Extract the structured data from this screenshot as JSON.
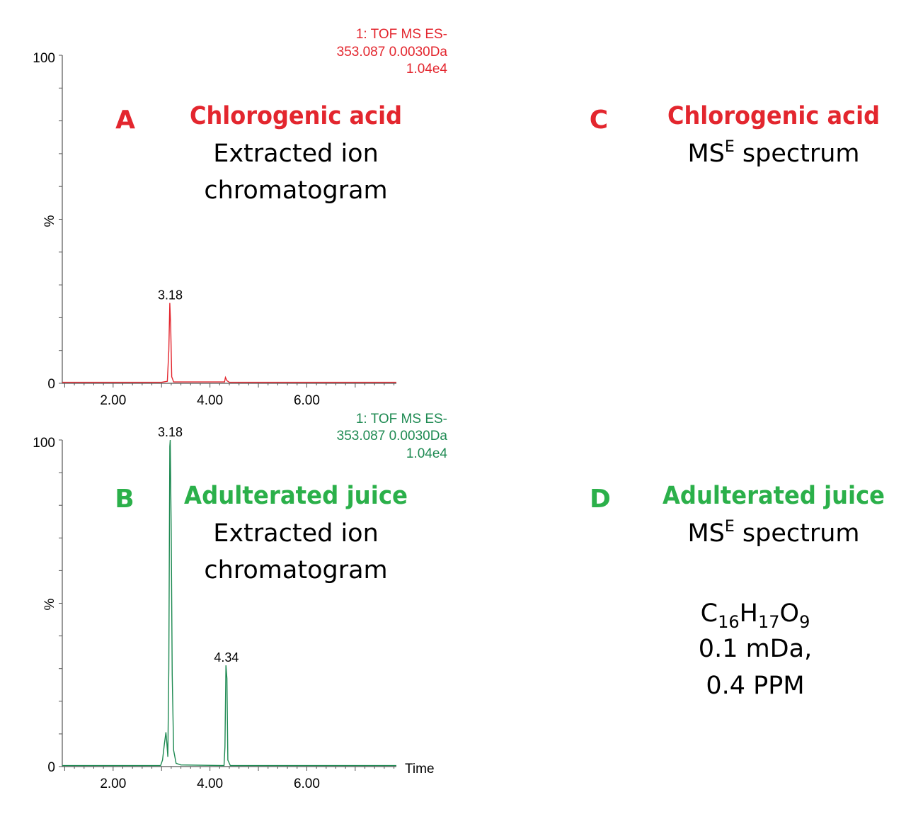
{
  "colors": {
    "red": "#e3262e",
    "green": "#1e8a52",
    "greenLabel": "#2bb04a",
    "axis": "#555555"
  },
  "panels": {
    "A": {
      "letter": "A",
      "title": "Chlorogenic acid",
      "line1": "Extracted ion",
      "line2": "chromatogram"
    },
    "B": {
      "letter": "B",
      "title": "Adulterated juice",
      "line1": "Extracted ion",
      "line2": "chromatogram"
    },
    "C": {
      "letter": "C",
      "title": "Chlorogenic acid",
      "spec_prefix": "MS",
      "spec_sup": "E",
      "spec_suffix": " spectrum"
    },
    "D": {
      "letter": "D",
      "title": "Adulterated juice",
      "spec_prefix": "MS",
      "spec_sup": "E",
      "spec_suffix": " spectrum",
      "formula": [
        {
          "el": "C",
          "n": "16"
        },
        {
          "el": "H",
          "n": "17"
        },
        {
          "el": "O",
          "n": "9"
        }
      ],
      "error_mda": "0.1 mDa,",
      "error_ppm": "0.4 PPM"
    }
  },
  "chart_data": [
    {
      "type": "line",
      "panel": "A",
      "header": [
        "1: TOF MS ES-",
        "353.087 0.0030Da",
        "1.04e4"
      ],
      "ylabel": "%",
      "xlabel": "",
      "y_ticks": [
        "100",
        "0"
      ],
      "x_ticks": [
        "2.00",
        "4.00",
        "6.00"
      ],
      "xlim": [
        0.95,
        7.85
      ],
      "ylim": [
        0,
        100
      ],
      "peak_labels": [
        {
          "x": 3.18,
          "y": 24.5,
          "text": "3.18"
        }
      ],
      "series": [
        {
          "color": "red",
          "points": [
            [
              0.95,
              0.3
            ],
            [
              3.0,
              0.3
            ],
            [
              3.12,
              0.6
            ],
            [
              3.15,
              10
            ],
            [
              3.17,
              24.5
            ],
            [
              3.19,
              17
            ],
            [
              3.21,
              2
            ],
            [
              3.25,
              0.4
            ],
            [
              4.3,
              0.4
            ],
            [
              4.32,
              1.8
            ],
            [
              4.35,
              0.8
            ],
            [
              4.4,
              0.3
            ],
            [
              7.85,
              0.3
            ]
          ]
        }
      ]
    },
    {
      "type": "line",
      "panel": "B",
      "header": [
        "1: TOF MS ES-",
        "353.087 0.0030Da",
        "1.04e4"
      ],
      "ylabel": "%",
      "xlabel": "Time",
      "y_ticks": [
        "100",
        "0"
      ],
      "x_ticks": [
        "2.00",
        "4.00",
        "6.00"
      ],
      "xlim": [
        0.95,
        7.85
      ],
      "ylim": [
        0,
        100
      ],
      "peak_labels": [
        {
          "x": 3.18,
          "y": 100,
          "text": "3.18"
        },
        {
          "x": 4.34,
          "y": 31,
          "text": "4.34"
        }
      ],
      "series": [
        {
          "color": "green",
          "points": [
            [
              0.95,
              0.3
            ],
            [
              2.98,
              0.3
            ],
            [
              3.02,
              2
            ],
            [
              3.06,
              7
            ],
            [
              3.09,
              10.5
            ],
            [
              3.11,
              7
            ],
            [
              3.13,
              3
            ],
            [
              3.15,
              30
            ],
            [
              3.17,
              98
            ],
            [
              3.18,
              100
            ],
            [
              3.2,
              72
            ],
            [
              3.22,
              28
            ],
            [
              3.25,
              5
            ],
            [
              3.3,
              1
            ],
            [
              3.4,
              0.5
            ],
            [
              4.29,
              0.3
            ],
            [
              4.31,
              6
            ],
            [
              4.33,
              31
            ],
            [
              4.35,
              27
            ],
            [
              4.37,
              2
            ],
            [
              4.42,
              0.3
            ],
            [
              7.85,
              0.3
            ]
          ]
        }
      ]
    }
  ]
}
